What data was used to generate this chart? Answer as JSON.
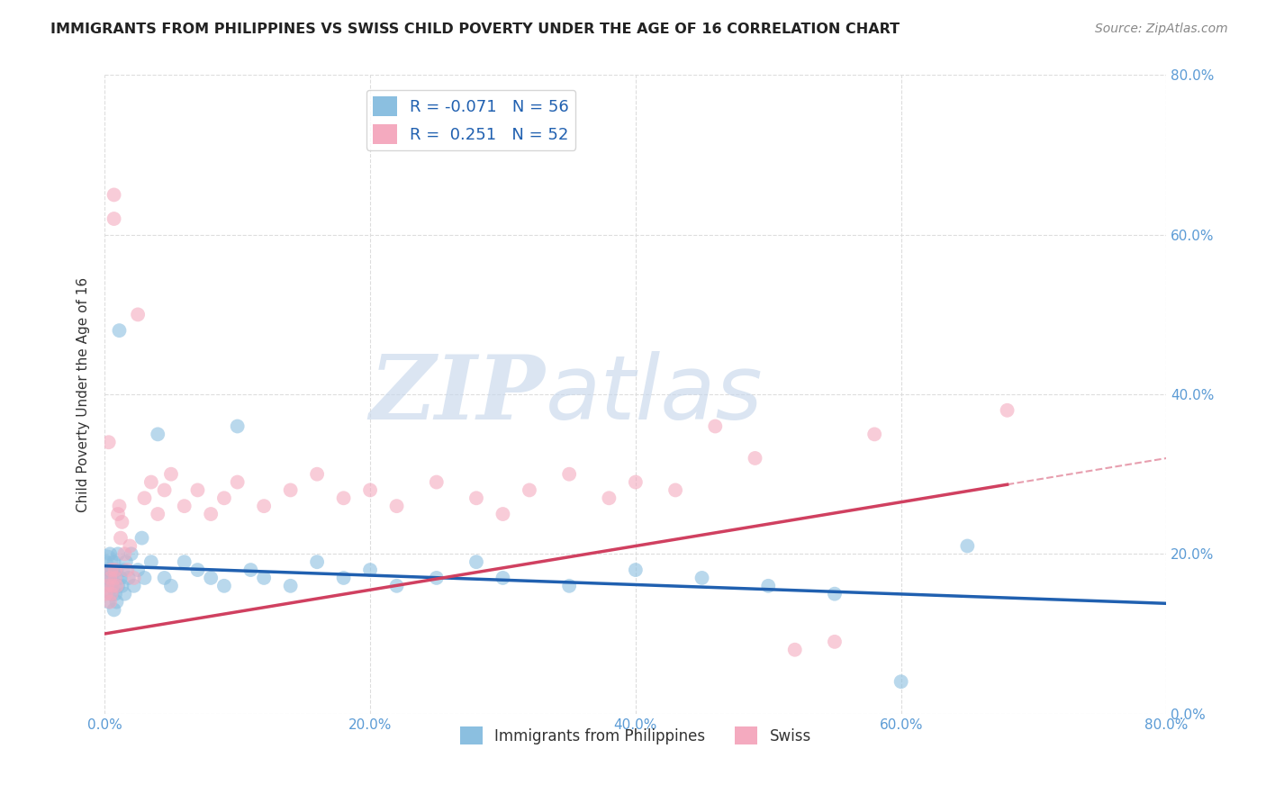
{
  "title": "IMMIGRANTS FROM PHILIPPINES VS SWISS CHILD POVERTY UNDER THE AGE OF 16 CORRELATION CHART",
  "source": "Source: ZipAtlas.com",
  "ylabel": "Child Poverty Under the Age of 16",
  "xlim": [
    0.0,
    0.8
  ],
  "ylim": [
    0.0,
    0.8
  ],
  "xticks": [
    0.0,
    0.2,
    0.4,
    0.6,
    0.8
  ],
  "yticks": [
    0.0,
    0.2,
    0.4,
    0.6,
    0.8
  ],
  "xticklabels": [
    "0.0%",
    "20.0%",
    "40.0%",
    "60.0%",
    "80.0%"
  ],
  "yticklabels": [
    "0.0%",
    "20.0%",
    "40.0%",
    "60.0%",
    "80.0%"
  ],
  "blue_color": "#8BBFE0",
  "pink_color": "#F4AABF",
  "blue_line_color": "#2060B0",
  "pink_line_color": "#D04060",
  "blue_R": -0.071,
  "blue_N": 56,
  "pink_R": 0.251,
  "pink_N": 52,
  "watermark": "ZIPatlas",
  "watermark_color": "#C5D8EC",
  "legend_label_blue": "Immigrants from Philippines",
  "legend_label_pink": "Swiss",
  "tick_color": "#5B9BD5",
  "grid_color": "#DDDDDD",
  "title_color": "#222222",
  "source_color": "#888888",
  "blue_scatter_x": [
    0.001,
    0.002,
    0.003,
    0.003,
    0.004,
    0.004,
    0.005,
    0.005,
    0.006,
    0.006,
    0.007,
    0.007,
    0.008,
    0.008,
    0.009,
    0.009,
    0.01,
    0.01,
    0.011,
    0.012,
    0.013,
    0.014,
    0.015,
    0.016,
    0.018,
    0.02,
    0.022,
    0.025,
    0.028,
    0.03,
    0.035,
    0.04,
    0.045,
    0.05,
    0.06,
    0.07,
    0.08,
    0.09,
    0.1,
    0.11,
    0.12,
    0.14,
    0.16,
    0.18,
    0.2,
    0.22,
    0.25,
    0.28,
    0.3,
    0.35,
    0.4,
    0.45,
    0.5,
    0.55,
    0.6,
    0.65
  ],
  "blue_scatter_y": [
    0.19,
    0.17,
    0.18,
    0.14,
    0.16,
    0.2,
    0.17,
    0.15,
    0.18,
    0.16,
    0.19,
    0.13,
    0.17,
    0.15,
    0.18,
    0.14,
    0.2,
    0.16,
    0.48,
    0.17,
    0.16,
    0.18,
    0.15,
    0.19,
    0.17,
    0.2,
    0.16,
    0.18,
    0.22,
    0.17,
    0.19,
    0.35,
    0.17,
    0.16,
    0.19,
    0.18,
    0.17,
    0.16,
    0.36,
    0.18,
    0.17,
    0.16,
    0.19,
    0.17,
    0.18,
    0.16,
    0.17,
    0.19,
    0.17,
    0.16,
    0.18,
    0.17,
    0.16,
    0.15,
    0.04,
    0.21
  ],
  "pink_scatter_x": [
    0.001,
    0.002,
    0.003,
    0.004,
    0.004,
    0.005,
    0.005,
    0.006,
    0.007,
    0.007,
    0.008,
    0.008,
    0.009,
    0.01,
    0.011,
    0.012,
    0.013,
    0.015,
    0.017,
    0.019,
    0.022,
    0.025,
    0.03,
    0.035,
    0.04,
    0.045,
    0.05,
    0.06,
    0.07,
    0.08,
    0.09,
    0.1,
    0.12,
    0.14,
    0.16,
    0.18,
    0.2,
    0.22,
    0.25,
    0.28,
    0.3,
    0.32,
    0.35,
    0.38,
    0.4,
    0.43,
    0.46,
    0.49,
    0.52,
    0.55,
    0.58,
    0.68
  ],
  "pink_scatter_y": [
    0.15,
    0.16,
    0.34,
    0.14,
    0.17,
    0.18,
    0.15,
    0.16,
    0.65,
    0.62,
    0.18,
    0.17,
    0.16,
    0.25,
    0.26,
    0.22,
    0.24,
    0.2,
    0.18,
    0.21,
    0.17,
    0.5,
    0.27,
    0.29,
    0.25,
    0.28,
    0.3,
    0.26,
    0.28,
    0.25,
    0.27,
    0.29,
    0.26,
    0.28,
    0.3,
    0.27,
    0.28,
    0.26,
    0.29,
    0.27,
    0.25,
    0.28,
    0.3,
    0.27,
    0.29,
    0.28,
    0.36,
    0.32,
    0.08,
    0.09,
    0.35,
    0.38
  ],
  "blue_trend_x0": 0.0,
  "blue_trend_y0": 0.185,
  "blue_trend_x1": 0.8,
  "blue_trend_y1": 0.138,
  "pink_trend_x0": 0.0,
  "pink_trend_y0": 0.1,
  "pink_trend_x1": 0.8,
  "pink_trend_y1": 0.32
}
